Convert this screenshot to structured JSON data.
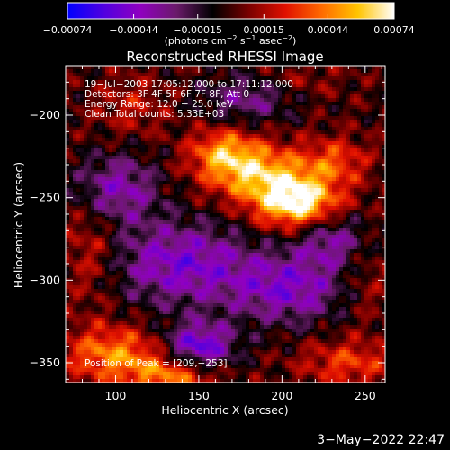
{
  "chart_data": {
    "type": "heatmap",
    "title": "Reconstructed RHESSI Image",
    "xlabel": "Heliocentric X (arcsec)",
    "ylabel": "Heliocentric Y (arcsec)",
    "xlim": [
      70,
      262
    ],
    "ylim": [
      -362,
      -170
    ],
    "x_ticks": [
      100,
      150,
      200,
      250
    ],
    "y_ticks": [
      -200,
      -250,
      -300,
      -350
    ],
    "x_tick_labels": [
      "100",
      "150",
      "200",
      "250"
    ],
    "y_tick_labels": [
      "−200",
      "−250",
      "−300",
      "−350"
    ],
    "colorbar": {
      "range": [
        -0.00074,
        0.00074
      ],
      "ticks": [
        -0.00074,
        -0.00044,
        -0.00015,
        0.00015,
        0.00044,
        0.00074
      ],
      "tick_labels": [
        "−0.00074",
        "−0.00044",
        "−0.00015",
        "0.00015",
        "0.00044",
        "0.00074"
      ],
      "units_text": "(photons cm",
      "units_exp1": "−2",
      "units_mid1": " s",
      "units_exp2": "−1",
      "units_mid2": " asec",
      "units_exp3": "−2",
      "units_end": ")",
      "colors": [
        "#0000ff",
        "#5000e0",
        "#9000c0",
        "#6a1a6a",
        "#000000",
        "#7a0000",
        "#e01000",
        "#ff6a00",
        "#ffc400",
        "#ffffff"
      ]
    },
    "annotations": [
      "19−Jul−2003 17:05:12.000 to 17:11:12.000",
      "Detectors: 3F 4F 5F 6F 7F 8F, Att 0",
      "Energy Range: 12.0 − 25.0 keV",
      "Clean    Total counts: 5.33E+03",
      "Position of Peak = [209,−253]"
    ],
    "peak": {
      "x": 209,
      "y": -253,
      "value": 0.00074
    },
    "sources": [
      {
        "x": 209,
        "y": -253,
        "sx": 18,
        "sy": 11,
        "amp": 0.00074
      },
      {
        "x": 185,
        "y": -235,
        "sx": 22,
        "sy": 12,
        "amp": 0.00052
      },
      {
        "x": 165,
        "y": -222,
        "sx": 14,
        "sy": 10,
        "amp": 0.0004
      },
      {
        "x": 232,
        "y": -228,
        "sx": 14,
        "sy": 10,
        "amp": 0.0003
      },
      {
        "x": 100,
        "y": -345,
        "sx": 22,
        "sy": 12,
        "amp": 0.00045
      },
      {
        "x": 135,
        "y": -358,
        "sx": 18,
        "sy": 8,
        "amp": 0.0004
      },
      {
        "x": 240,
        "y": -350,
        "sx": 20,
        "sy": 10,
        "amp": 0.0003
      },
      {
        "x": 85,
        "y": -280,
        "sx": 12,
        "sy": 25,
        "amp": 0.00022
      },
      {
        "x": 110,
        "y": -195,
        "sx": 15,
        "sy": 12,
        "amp": 0.00018
      },
      {
        "x": 250,
        "y": -300,
        "sx": 12,
        "sy": 18,
        "amp": 0.00015
      },
      {
        "x": 210,
        "y": -180,
        "sx": 18,
        "sy": 8,
        "amp": 0.00012
      },
      {
        "x": 140,
        "y": -290,
        "sx": 30,
        "sy": 18,
        "amp": -0.00045
      },
      {
        "x": 205,
        "y": -305,
        "sx": 25,
        "sy": 15,
        "amp": -0.00042
      },
      {
        "x": 150,
        "y": -340,
        "sx": 15,
        "sy": 10,
        "amp": -0.00055
      },
      {
        "x": 100,
        "y": -245,
        "sx": 18,
        "sy": 15,
        "amp": -0.0004
      },
      {
        "x": 230,
        "y": -275,
        "sx": 15,
        "sy": 12,
        "amp": -0.00035
      },
      {
        "x": 180,
        "y": -190,
        "sx": 20,
        "sy": 10,
        "amp": -0.0003
      }
    ]
  },
  "footer": {
    "date": "3−May−2022 22:47"
  }
}
